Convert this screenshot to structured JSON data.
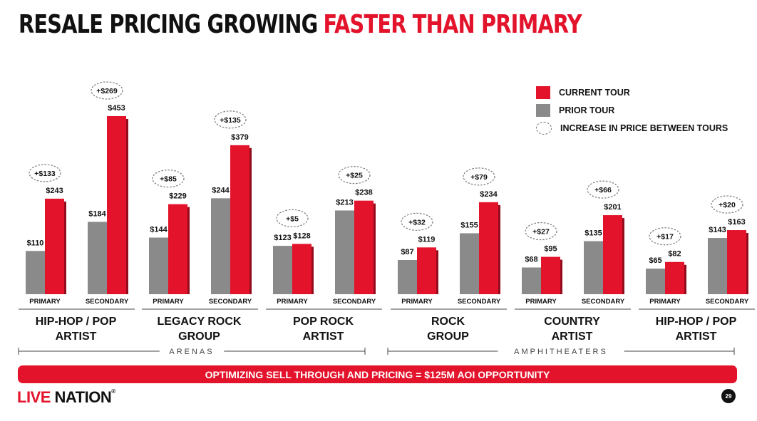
{
  "title": {
    "part1": "RESALE PRICING GROWING",
    "part2": "FASTER THAN PRIMARY"
  },
  "legend": {
    "current": "CURRENT TOUR",
    "prior": "PRIOR TOUR",
    "increase": "INCREASE IN PRICE BETWEEN TOURS"
  },
  "colors": {
    "current": "#e3132b",
    "prior": "#8a8a8a",
    "accent": "#e3132b"
  },
  "chart_data": {
    "type": "bar",
    "series": [
      {
        "name": "PRIOR TOUR"
      },
      {
        "name": "CURRENT TOUR"
      }
    ],
    "pair_labels": [
      "PRIMARY",
      "SECONDARY"
    ],
    "groups": [
      {
        "category": [
          "HIP-HOP / POP",
          "ARTIST"
        ],
        "primary": {
          "prior": 110,
          "current": 243,
          "increase": "+$133"
        },
        "secondary": {
          "prior": 184,
          "current": 453,
          "increase": "+$269"
        }
      },
      {
        "category": [
          "LEGACY ROCK",
          "GROUP"
        ],
        "primary": {
          "prior": 144,
          "current": 229,
          "increase": "+$85"
        },
        "secondary": {
          "prior": 244,
          "current": 379,
          "increase": "+$135"
        }
      },
      {
        "category": [
          "POP ROCK",
          "ARTIST"
        ],
        "primary": {
          "prior": 123,
          "current": 128,
          "increase": "+$5"
        },
        "secondary": {
          "prior": 213,
          "current": 238,
          "increase": "+$25"
        }
      },
      {
        "category": [
          "ROCK",
          "GROUP"
        ],
        "primary": {
          "prior": 87,
          "current": 119,
          "increase": "+$32"
        },
        "secondary": {
          "prior": 155,
          "current": 234,
          "increase": "+$79"
        }
      },
      {
        "category": [
          "COUNTRY",
          "ARTIST"
        ],
        "primary": {
          "prior": 68,
          "current": 95,
          "increase": "+$27"
        },
        "secondary": {
          "prior": 135,
          "current": 201,
          "increase": "+$66"
        }
      },
      {
        "category": [
          "HIP-HOP / POP",
          "ARTIST"
        ],
        "primary": {
          "prior": 65,
          "current": 82,
          "increase": "+$17"
        },
        "secondary": {
          "prior": 143,
          "current": 163,
          "increase": "+$20"
        }
      }
    ],
    "venue_sections": [
      {
        "label": "ARENAS",
        "groups": [
          0,
          1,
          2
        ]
      },
      {
        "label": "AMPHITHEATERS",
        "groups": [
          3,
          4,
          5
        ]
      }
    ],
    "ylim": [
      0,
      453
    ],
    "legend_position": "top-right",
    "grid": false
  },
  "banner": "OPTIMIZING SELL THROUGH AND PRICING = $125M AOI OPPORTUNITY",
  "logo": {
    "live": "LIVE",
    "nation": "NATION",
    "reg": "®"
  },
  "page_number": "29"
}
